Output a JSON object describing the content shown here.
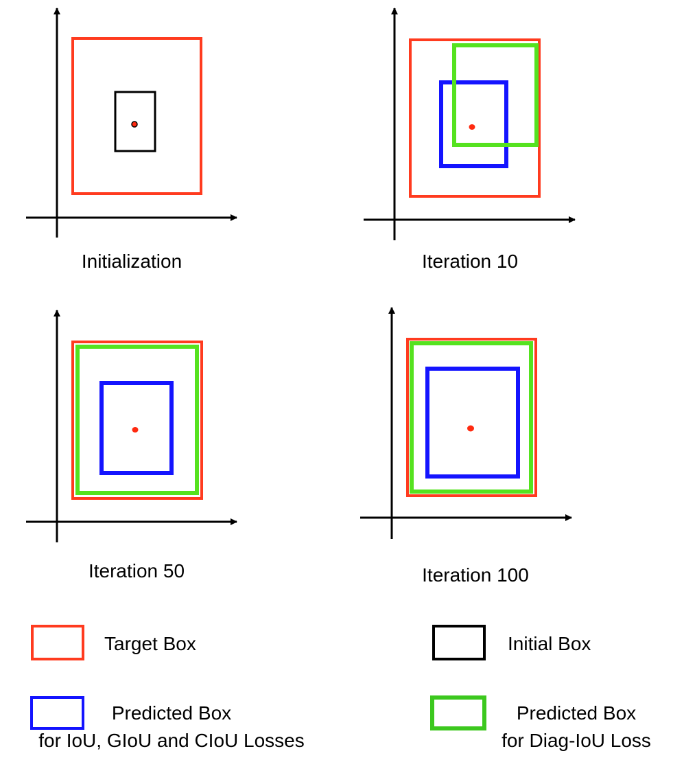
{
  "panels": [
    {
      "caption": "Initialization"
    },
    {
      "caption": "Iteration 10"
    },
    {
      "caption": "Iteration 50"
    },
    {
      "caption": "Iteration 100"
    }
  ],
  "legend": {
    "target": "Target Box",
    "initial": "Initial Box",
    "predicted_iou_line1": "Predicted Box",
    "predicted_iou_line2": "for IoU, GIoU and CIoU Losses",
    "predicted_diag_line1": "Predicted Box",
    "predicted_diag_line2": "for Diag-IoU Loss"
  },
  "colors": {
    "target": "#ff3b1f",
    "initial": "#000000",
    "predicted_iou": "#1414ff",
    "predicted_diag": "#55e21f",
    "predicted_diag_legend": "#3cc81e",
    "center_dot": "#ff2a10"
  }
}
